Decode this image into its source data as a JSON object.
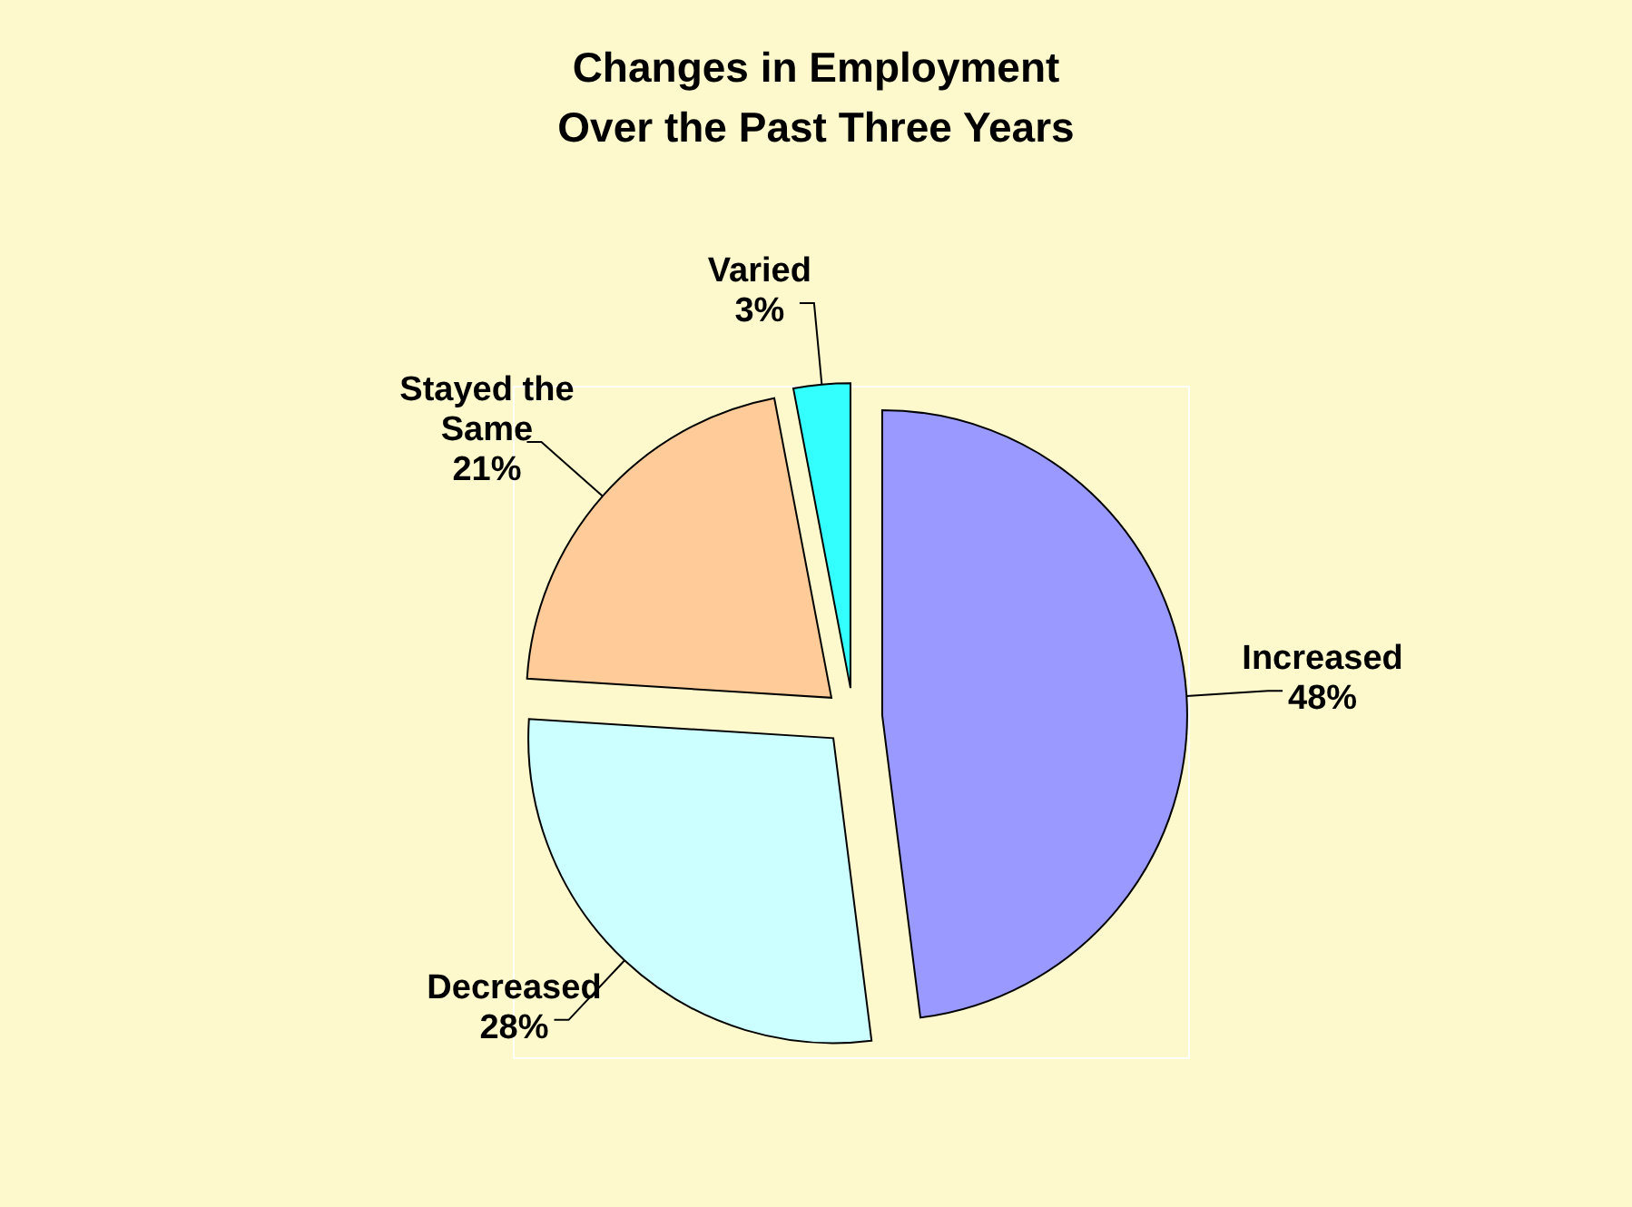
{
  "chart_data": {
    "type": "pie",
    "title": "Changes in Employment\nOver the Past Three Years",
    "categories": [
      "Increased",
      "Decreased",
      "Stayed the Same",
      "Varied"
    ],
    "values": [
      48,
      28,
      21,
      3
    ],
    "colors": [
      "#9999ff",
      "#ccffff",
      "#ffcc99",
      "#33ffff"
    ],
    "value_labels": [
      "48%",
      "28%",
      "21%",
      "3%"
    ]
  }
}
